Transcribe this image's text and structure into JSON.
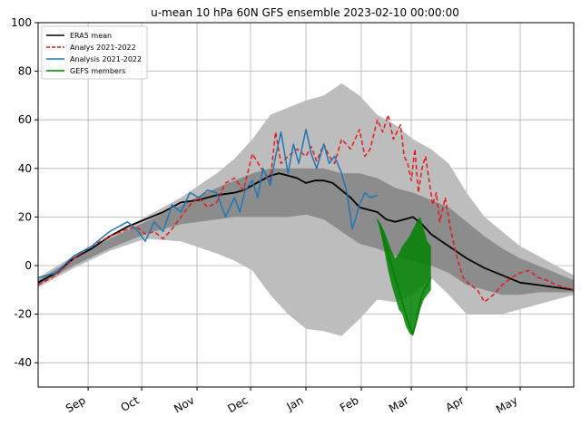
{
  "chart_data": {
    "type": "line",
    "title": "u-mean 10 hPa 60N GFS ensemble 2023-02-10 00:00:00",
    "xlabel": "",
    "ylabel": "",
    "xlim": [
      0,
      300
    ],
    "ylim": [
      -50,
      100
    ],
    "grid": true,
    "legend_position": "upper-left",
    "x_ticks": [
      {
        "label": "Sep",
        "x": 28
      },
      {
        "label": "Oct",
        "x": 58
      },
      {
        "label": "Nov",
        "x": 89
      },
      {
        "label": "Dec",
        "x": 119
      },
      {
        "label": "Jan",
        "x": 150
      },
      {
        "label": "Feb",
        "x": 181
      },
      {
        "label": "Mar",
        "x": 209
      },
      {
        "label": "Apr",
        "x": 240
      },
      {
        "label": "May",
        "x": 270
      }
    ],
    "y_ticks": [
      -40,
      -20,
      0,
      20,
      40,
      60,
      80,
      100
    ],
    "outer_band": {
      "name": "ensemble range (light)",
      "x": [
        0,
        20,
        40,
        60,
        80,
        100,
        110,
        120,
        130,
        140,
        150,
        160,
        170,
        180,
        190,
        200,
        210,
        220,
        230,
        240,
        250,
        260,
        270,
        280,
        290,
        300
      ],
      "upper": [
        -5,
        4,
        12,
        20,
        28,
        38,
        44,
        52,
        62,
        65,
        68,
        70,
        75,
        70,
        62,
        58,
        52,
        48,
        42,
        30,
        20,
        14,
        8,
        4,
        0,
        -4
      ],
      "lower": [
        -9,
        -1,
        6,
        11,
        10,
        5,
        2,
        -2,
        -12,
        -20,
        -26,
        -27,
        -29,
        -22,
        -14,
        -15,
        -12,
        -5,
        -12,
        -20,
        -20,
        -20,
        -18,
        -16,
        -14,
        -12
      ]
    },
    "inner_band": {
      "name": "ensemble interquartile (dark)",
      "x": [
        0,
        20,
        40,
        60,
        80,
        100,
        110,
        120,
        130,
        140,
        150,
        160,
        170,
        180,
        190,
        200,
        210,
        220,
        230,
        240,
        250,
        260,
        270,
        280,
        290,
        300
      ],
      "upper": [
        -6,
        3,
        11,
        18,
        25,
        32,
        35,
        38,
        40,
        40,
        40,
        40,
        38,
        38,
        36,
        32,
        30,
        27,
        24,
        18,
        12,
        7,
        3,
        0,
        -3,
        -6
      ],
      "lower": [
        -8,
        0,
        7,
        13,
        17,
        19,
        20,
        20,
        20,
        20,
        21,
        19,
        14,
        9,
        7,
        4,
        2,
        0,
        -3,
        -8,
        -10,
        -12,
        -12,
        -11,
        -11,
        -11
      ]
    },
    "series": [
      {
        "name": "ERA5 mean",
        "color": "#000000",
        "dash": "solid",
        "x": [
          0,
          10,
          20,
          30,
          40,
          50,
          60,
          70,
          80,
          90,
          100,
          110,
          115,
          120,
          125,
          130,
          135,
          140,
          145,
          150,
          155,
          160,
          165,
          170,
          175,
          180,
          185,
          190,
          195,
          200,
          205,
          210,
          215,
          220,
          230,
          240,
          250,
          260,
          270,
          280,
          290,
          300
        ],
        "values": [
          -7,
          -3,
          3,
          7,
          12,
          16,
          19,
          22,
          26,
          27,
          29,
          30,
          31,
          33,
          35,
          37,
          38,
          37,
          36,
          34,
          35,
          35,
          34,
          31,
          28,
          24,
          23,
          22,
          19,
          18,
          19,
          20,
          17,
          13,
          8,
          3,
          -1,
          -4,
          -7,
          -8,
          -9,
          -10
        ]
      },
      {
        "name": "Analys 2021-2022",
        "color": "#e41a1c",
        "dash": "dashed",
        "x": [
          0,
          10,
          20,
          30,
          40,
          50,
          55,
          60,
          65,
          70,
          75,
          80,
          85,
          90,
          95,
          100,
          105,
          110,
          115,
          120,
          125,
          130,
          133,
          136,
          140,
          145,
          150,
          153,
          156,
          160,
          163,
          166,
          170,
          175,
          180,
          183,
          186,
          190,
          193,
          196,
          199,
          203,
          205,
          207,
          209,
          211,
          213,
          215,
          217,
          219,
          221,
          223,
          225,
          228,
          231,
          234,
          238,
          242,
          246,
          250,
          255,
          260,
          265,
          270,
          275,
          280,
          285,
          290,
          295,
          300
        ],
        "values": [
          -8,
          -4,
          3,
          8,
          12,
          15,
          16,
          13,
          14,
          11,
          15,
          20,
          25,
          28,
          24,
          26,
          34,
          36,
          31,
          46,
          40,
          35,
          55,
          42,
          45,
          48,
          45,
          49,
          43,
          50,
          45,
          42,
          52,
          48,
          56,
          45,
          48,
          60,
          55,
          62,
          52,
          58,
          45,
          42,
          35,
          48,
          30,
          40,
          45,
          35,
          25,
          30,
          18,
          28,
          15,
          5,
          -5,
          -8,
          -10,
          -15,
          -12,
          -8,
          -5,
          -3,
          -2,
          -5,
          -6,
          -8,
          -9,
          -10
        ]
      },
      {
        "name": "Analysis 2021-2022",
        "color": "#1f77b4",
        "dash": "solid",
        "x": [
          0,
          10,
          20,
          30,
          40,
          50,
          55,
          60,
          65,
          70,
          75,
          80,
          85,
          90,
          95,
          100,
          105,
          110,
          113,
          116,
          120,
          123,
          126,
          130,
          133,
          136,
          140,
          143,
          146,
          150,
          153,
          156,
          160,
          163,
          166,
          170,
          173,
          176,
          180,
          183,
          186,
          190
        ],
        "values": [
          -5,
          -3,
          4,
          8,
          14,
          18,
          15,
          10,
          18,
          14,
          25,
          22,
          30,
          28,
          31,
          30,
          20,
          28,
          22,
          31,
          35,
          28,
          40,
          33,
          45,
          55,
          38,
          50,
          42,
          56,
          46,
          40,
          50,
          42,
          45,
          38,
          30,
          15,
          25,
          30,
          28,
          29
        ]
      },
      {
        "name": "GEFS members",
        "color": "#008000",
        "dash": "solid",
        "x": [
          190,
          192,
          194,
          196,
          198,
          200,
          202,
          204,
          206,
          208,
          210,
          212,
          214,
          216,
          218,
          220
        ],
        "values": [
          19,
          15,
          10,
          5,
          0,
          -5,
          -10,
          -15,
          -20,
          -25,
          -28,
          -22,
          -15,
          -10,
          -8,
          -5
        ],
        "upper": [
          19,
          17,
          14,
          10,
          6,
          3,
          5,
          8,
          10,
          12,
          15,
          18,
          20,
          15,
          10,
          8
        ],
        "lower": [
          19,
          13,
          6,
          -2,
          -8,
          -13,
          -18,
          -20,
          -25,
          -28,
          -29,
          -24,
          -18,
          -14,
          -12,
          -10
        ]
      }
    ]
  }
}
